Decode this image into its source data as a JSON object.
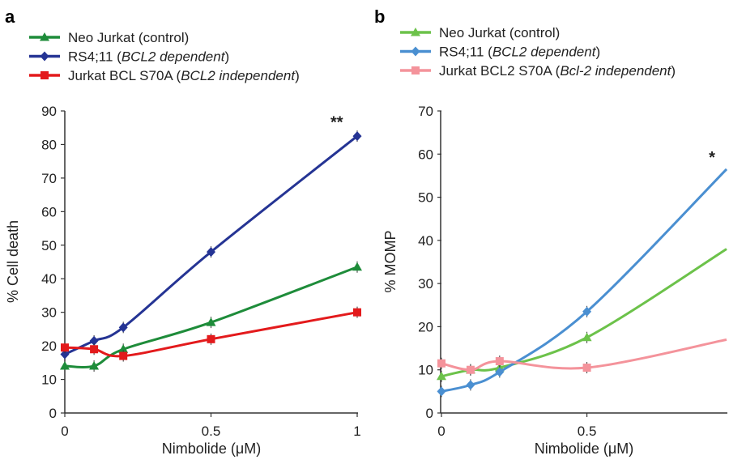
{
  "chart_data": [
    {
      "panel": "a",
      "type": "line",
      "xlabel": "Nimbolide (μM)",
      "ylabel": "% Cell death",
      "x": [
        0,
        0.1,
        0.2,
        0.5,
        1
      ],
      "x_ticks": [
        "0",
        "0.5",
        "1"
      ],
      "y_ticks": [
        "0",
        "10",
        "20",
        "30",
        "40",
        "50",
        "60",
        "70",
        "80",
        "90"
      ],
      "ylim": [
        0,
        90
      ],
      "grid": false,
      "legend_position": "top-left",
      "series": [
        {
          "name": "Neo Jurkat (control)",
          "name_parts": [
            {
              "text": "Neo Jurkat (control)",
              "italic": false
            }
          ],
          "color": "#1e8c3a",
          "marker": "triangle",
          "values": [
            14,
            14,
            19,
            27,
            43.5
          ]
        },
        {
          "name": "RS4;11 (BCL2 dependent)",
          "name_parts": [
            {
              "text": "RS4;11 (",
              "italic": false
            },
            {
              "text": "BCL2 dependent",
              "italic": true
            },
            {
              "text": ")",
              "italic": false
            }
          ],
          "color": "#253494",
          "marker": "diamond",
          "values": [
            17.5,
            21.5,
            25.5,
            48,
            82.5
          ]
        },
        {
          "name": "Jurkat BCL S70A (BCL2 independent)",
          "name_parts": [
            {
              "text": "Jurkat BCL S70A (",
              "italic": false
            },
            {
              "text": "BCL2 independent",
              "italic": true
            },
            {
              "text": ")",
              "italic": false
            }
          ],
          "color": "#e31a1c",
          "marker": "square",
          "values": [
            19.5,
            19,
            17,
            22,
            30
          ]
        }
      ],
      "annotations": [
        {
          "text": "**",
          "x": 0.93,
          "y": 85
        }
      ]
    },
    {
      "panel": "b",
      "type": "line",
      "xlabel": "Nimbolide (μM)",
      "ylabel": "% MOMP",
      "x": [
        0,
        0.1,
        0.2,
        0.5
      ],
      "x_ticks": [
        "0",
        "0.5"
      ],
      "y_ticks": [
        "0",
        "10",
        "20",
        "30",
        "40",
        "50",
        "60",
        "70"
      ],
      "ylim": [
        0,
        70
      ],
      "xlim": [
        0,
        0.98
      ],
      "grid": false,
      "legend_position": "top",
      "series": [
        {
          "name": "Neo Jurkat (control)",
          "name_parts": [
            {
              "text": "Neo Jurkat (control)",
              "italic": false
            }
          ],
          "color": "#6cc24a",
          "marker": "triangle",
          "values": [
            8.5,
            10,
            10.5,
            17.5
          ],
          "trend_end": 38
        },
        {
          "name": "RS4;11 (BCL2 dependent)",
          "name_parts": [
            {
              "text": "RS4;11 (",
              "italic": false
            },
            {
              "text": "BCL2 dependent",
              "italic": true
            },
            {
              "text": ")",
              "italic": false
            }
          ],
          "color": "#4a8fd1",
          "marker": "diamond",
          "values": [
            5,
            6.5,
            9.5,
            23.5
          ],
          "trend_end": 56.5
        },
        {
          "name": "Jurkat BCL2 S70A (Bcl-2 independent)",
          "name_parts": [
            {
              "text": "Jurkat BCL2 S70A (",
              "italic": false
            },
            {
              "text": "Bcl-2 independent",
              "italic": true
            },
            {
              "text": ")",
              "italic": false
            }
          ],
          "color": "#f4939b",
          "marker": "square",
          "values": [
            11.5,
            10,
            12,
            10.5
          ],
          "trend_end": 17
        }
      ],
      "annotations": [
        {
          "text": "*",
          "x": 0.93,
          "y": 58
        }
      ]
    }
  ]
}
